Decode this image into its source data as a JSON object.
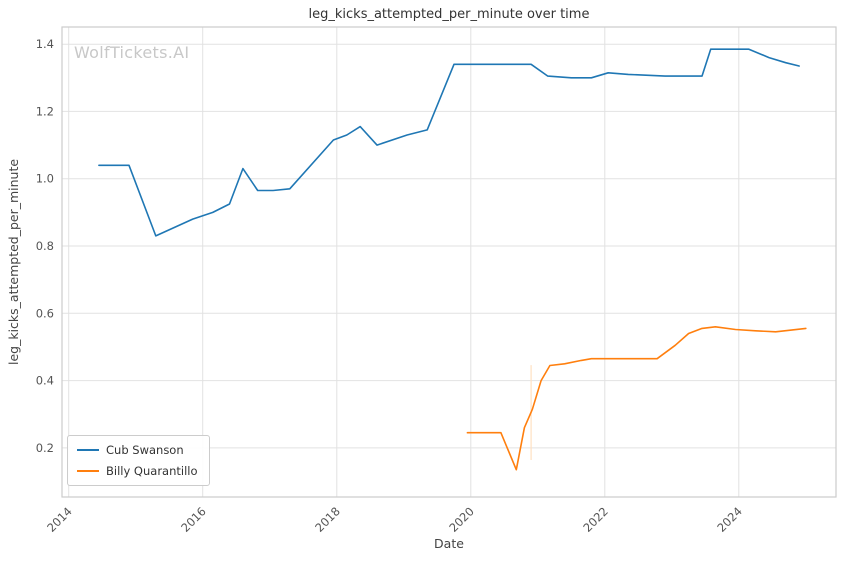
{
  "watermark": {
    "text": "WolfTickets.AI",
    "color": "#c8c8c8"
  },
  "chart_data": {
    "type": "line",
    "title": "leg_kicks_attempted_per_minute over time",
    "xlabel": "Date",
    "ylabel": "leg_kicks_attempted_per_minute",
    "xlim": [
      2013.9,
      2025.45
    ],
    "ylim": [
      0.054,
      1.451
    ],
    "x_ticks": [
      2014,
      2016,
      2018,
      2020,
      2022,
      2024
    ],
    "x_tick_labels": [
      "2014",
      "2016",
      "2018",
      "2020",
      "2022",
      "2024"
    ],
    "y_ticks": [
      0.2,
      0.4,
      0.6,
      0.8,
      1.0,
      1.2,
      1.4
    ],
    "y_tick_labels": [
      "0.2",
      "0.4",
      "0.6",
      "0.8",
      "1.0",
      "1.2",
      "1.4"
    ],
    "grid": true,
    "grid_color": "#e2e2e2",
    "border_color": "#cccccc",
    "legend_position": "lower left",
    "series": [
      {
        "name": "Cub Swanson",
        "color": "#1f77b4",
        "points": [
          [
            2014.45,
            1.04
          ],
          [
            2014.9,
            1.04
          ],
          [
            2015.3,
            0.83
          ],
          [
            2015.85,
            0.88
          ],
          [
            2016.15,
            0.9
          ],
          [
            2016.4,
            0.925
          ],
          [
            2016.6,
            1.03
          ],
          [
            2016.82,
            0.965
          ],
          [
            2017.05,
            0.965
          ],
          [
            2017.3,
            0.97
          ],
          [
            2017.95,
            1.115
          ],
          [
            2018.15,
            1.13
          ],
          [
            2018.35,
            1.155
          ],
          [
            2018.6,
            1.1
          ],
          [
            2019.05,
            1.13
          ],
          [
            2019.35,
            1.145
          ],
          [
            2019.75,
            1.34
          ],
          [
            2020.3,
            1.34
          ],
          [
            2020.9,
            1.34
          ],
          [
            2021.15,
            1.305
          ],
          [
            2021.5,
            1.3
          ],
          [
            2021.8,
            1.3
          ],
          [
            2022.05,
            1.315
          ],
          [
            2022.35,
            1.31
          ],
          [
            2022.9,
            1.305
          ],
          [
            2023.45,
            1.305
          ],
          [
            2023.58,
            1.385
          ],
          [
            2024.15,
            1.385
          ],
          [
            2024.45,
            1.36
          ],
          [
            2024.7,
            1.345
          ],
          [
            2024.9,
            1.335
          ]
        ]
      },
      {
        "name": "Billy Quarantillo",
        "color": "#ff7f0e",
        "points": [
          [
            2019.95,
            0.245
          ],
          [
            2020.3,
            0.245
          ],
          [
            2020.45,
            0.245
          ],
          [
            2020.68,
            0.135
          ],
          [
            2020.8,
            0.26
          ],
          [
            2020.92,
            0.315
          ],
          [
            2021.05,
            0.4
          ],
          [
            2021.18,
            0.445
          ],
          [
            2021.4,
            0.45
          ],
          [
            2021.65,
            0.46
          ],
          [
            2021.8,
            0.465
          ],
          [
            2022.15,
            0.465
          ],
          [
            2022.5,
            0.465
          ],
          [
            2022.78,
            0.465
          ],
          [
            2023.05,
            0.505
          ],
          [
            2023.25,
            0.54
          ],
          [
            2023.45,
            0.555
          ],
          [
            2023.65,
            0.56
          ],
          [
            2023.95,
            0.552
          ],
          [
            2024.25,
            0.548
          ],
          [
            2024.55,
            0.545
          ],
          [
            2025.0,
            0.555
          ]
        ]
      }
    ],
    "annotations": [
      {
        "type": "vline",
        "x": 2020.9,
        "y1": 0.164,
        "y2": 0.446,
        "color": "#ffe0c2"
      }
    ]
  }
}
